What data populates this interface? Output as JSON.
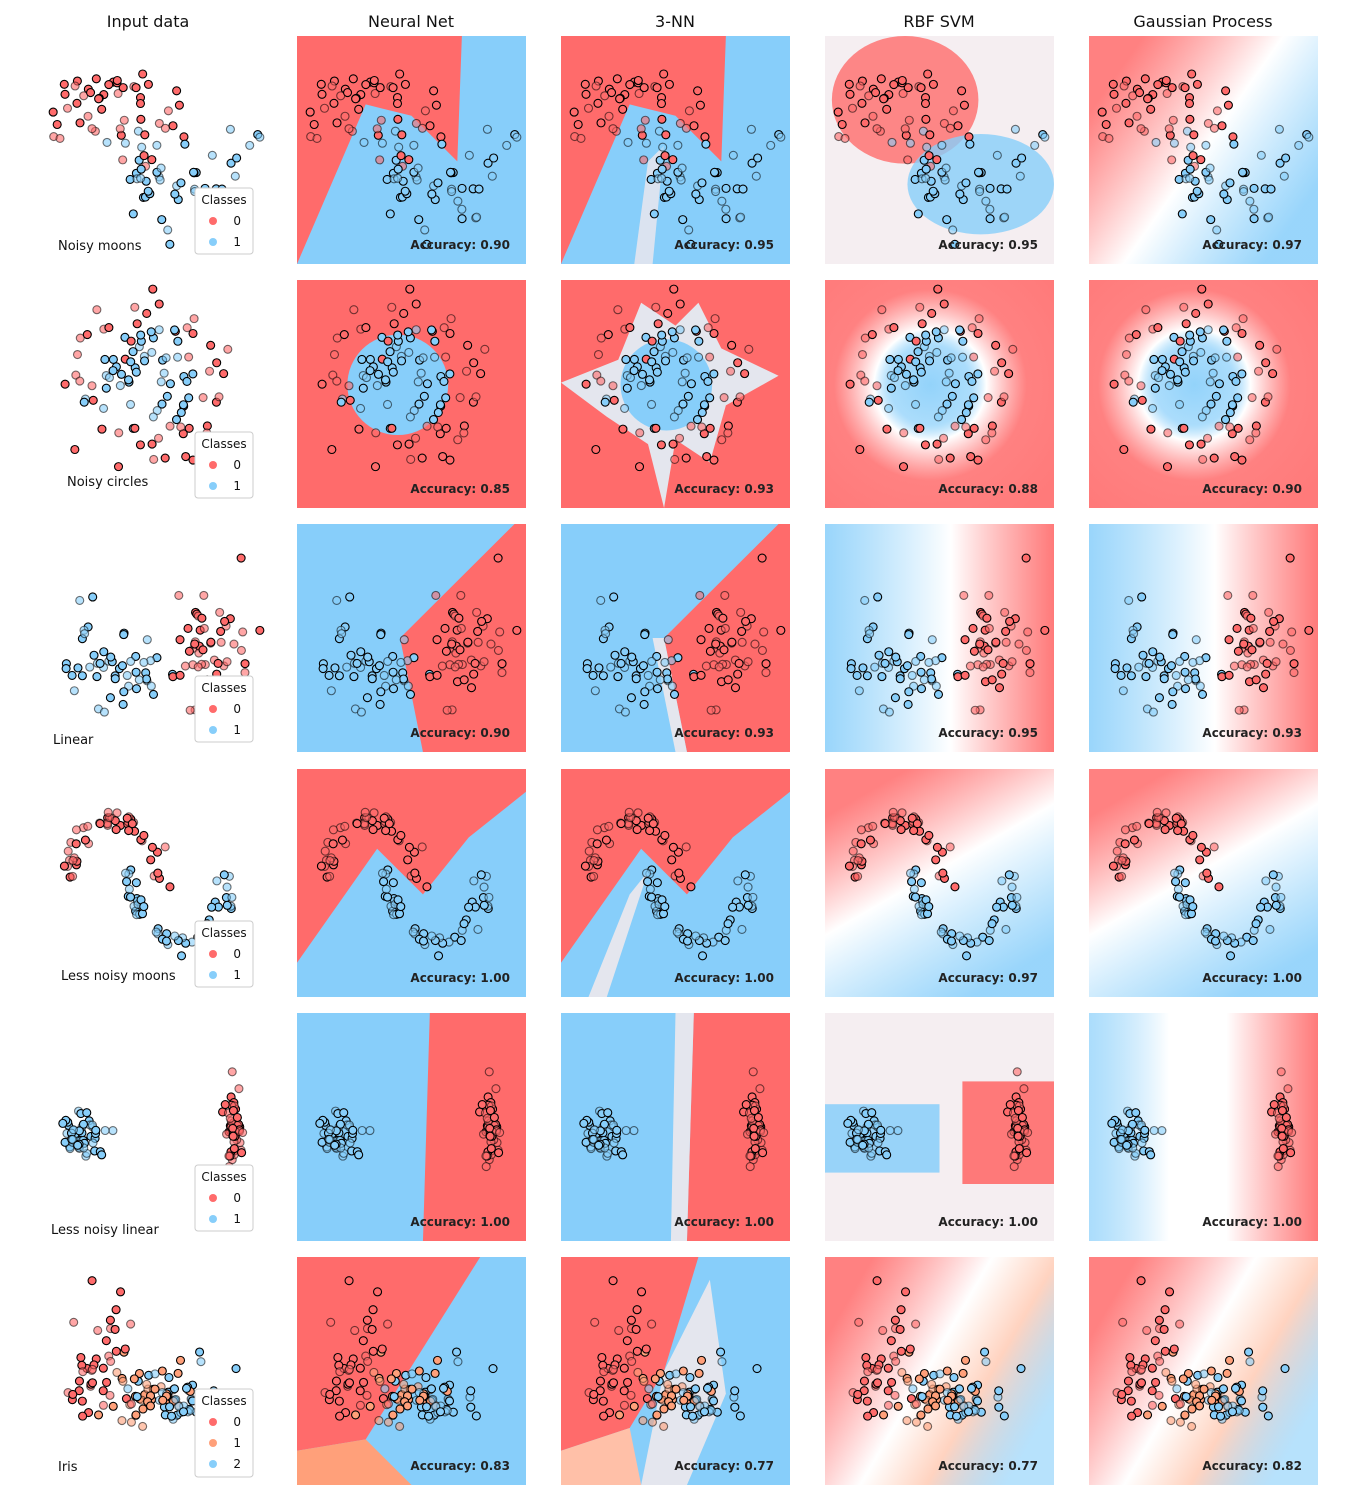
{
  "figure": {
    "columns": [
      "Input data",
      "Neural Net",
      "3-NN",
      "RBF SVM",
      "Gaussian Process"
    ],
    "legend_title": "Classes",
    "colors": {
      "class_0": "#ff6b6b",
      "class_1": "#87cefa",
      "class_2_iris": "#87cefa",
      "class_1_iris": "#ffa07a",
      "neutral": "#e4e6ee",
      "marker_edge": "#000000"
    }
  },
  "chart_data": [
    {
      "type": "scatter",
      "dataset": "Noisy moons",
      "classes": [
        "0",
        "1"
      ],
      "accuracy": {
        "Neural Net": "Accuracy: 0.90",
        "3-NN": "Accuracy: 0.95",
        "RBF SVM": "Accuracy: 0.95",
        "Gaussian Process": "Accuracy: 0.97"
      }
    },
    {
      "type": "scatter",
      "dataset": "Noisy circles",
      "classes": [
        "0",
        "1"
      ],
      "accuracy": {
        "Neural Net": "Accuracy: 0.85",
        "3-NN": "Accuracy: 0.93",
        "RBF SVM": "Accuracy: 0.88",
        "Gaussian Process": "Accuracy: 0.90"
      }
    },
    {
      "type": "scatter",
      "dataset": "Linear",
      "classes": [
        "0",
        "1"
      ],
      "accuracy": {
        "Neural Net": "Accuracy: 0.90",
        "3-NN": "Accuracy: 0.93",
        "RBF SVM": "Accuracy: 0.95",
        "Gaussian Process": "Accuracy: 0.93"
      }
    },
    {
      "type": "scatter",
      "dataset": "Less noisy moons",
      "classes": [
        "0",
        "1"
      ],
      "accuracy": {
        "Neural Net": "Accuracy: 1.00",
        "3-NN": "Accuracy: 1.00",
        "RBF SVM": "Accuracy: 0.97",
        "Gaussian Process": "Accuracy: 1.00"
      }
    },
    {
      "type": "scatter",
      "dataset": "Less noisy linear",
      "classes": [
        "0",
        "1"
      ],
      "accuracy": {
        "Neural Net": "Accuracy: 1.00",
        "3-NN": "Accuracy: 1.00",
        "RBF SVM": "Accuracy: 1.00",
        "Gaussian Process": "Accuracy: 1.00"
      }
    },
    {
      "type": "scatter",
      "dataset": "Iris",
      "classes": [
        "0",
        "1",
        "2"
      ],
      "accuracy": {
        "Neural Net": "Accuracy: 0.83",
        "3-NN": "Accuracy: 0.77",
        "RBF SVM": "Accuracy: 0.77",
        "Gaussian Process": "Accuracy: 0.82"
      }
    }
  ]
}
